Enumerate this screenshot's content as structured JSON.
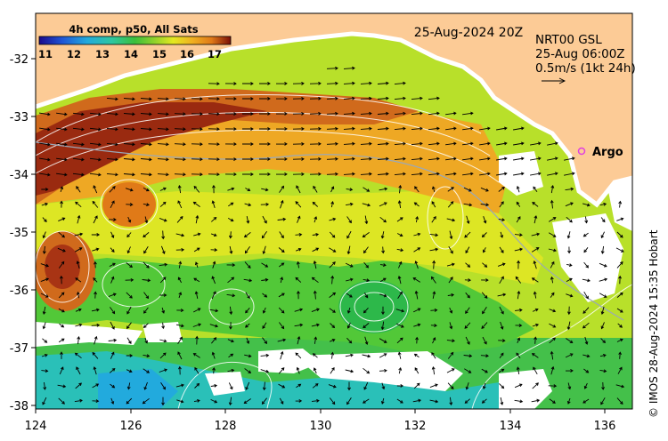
{
  "map": {
    "title_date": "25-Aug-2024 20Z",
    "colorbar": {
      "title": "4h comp, p50, All Sats",
      "ticks": [
        "11",
        "12",
        "13",
        "14",
        "15",
        "16",
        "17"
      ],
      "colors": [
        "#1a0a8c",
        "#1f55d6",
        "#22aadd",
        "#2ec7a0",
        "#3bbf3b",
        "#8fd12b",
        "#e4e820",
        "#f0b020",
        "#e07a18",
        "#b03010",
        "#7a1008"
      ]
    },
    "current_info": {
      "line1": "NRT00 GSL",
      "line2": "25-Aug 06:00Z",
      "line3": "0.5m/s (1kt 24h)"
    },
    "argo_label": "Argo",
    "argo_color": "#e040e0",
    "land_color": "#fccb96",
    "credit": "© IMOS 28-Aug-2024 15:35 Hobart",
    "lon_labels": [
      "124",
      "126",
      "128",
      "130",
      "132",
      "134",
      "136"
    ],
    "lat_labels": [
      "-32",
      "-33",
      "-34",
      "-35",
      "-36",
      "-37",
      "-38"
    ],
    "lon_range": [
      124,
      136.6
    ],
    "lat_range": [
      -38.1,
      -31.2
    ]
  }
}
